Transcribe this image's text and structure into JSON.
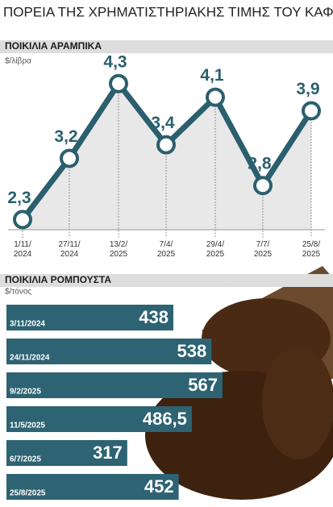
{
  "title": "Η ΠΟΡΕΙΑ ΤΗΣ ΧΡΗΜΑΤΙΣΤΗΡΙΑΚΗΣ ΤΙΜΗΣ ΤΟΥ ΚΑΦΕ",
  "chart_data": [
    {
      "type": "line",
      "title": "ΠΟΙΚΙΛΙΑ ΑΡΑΜΠΙΚΑ",
      "y_label": "$/λίβρα",
      "categories": [
        "1/11/2024",
        "27/11/2024",
        "13/2/2025",
        "7/4/2025",
        "29/4/2025",
        "7/7/2025",
        "25/8/2025"
      ],
      "series": [
        {
          "name": null,
          "color": "#2b5f6d",
          "values": [
            2.3,
            3.2,
            4.3,
            3.4,
            4.1,
            2.8,
            3.9
          ],
          "value_labels": [
            "2,3",
            "3,2",
            "4,3",
            "3,4",
            "4,1",
            "2,8",
            "3,9"
          ]
        }
      ],
      "ylim": [
        2.15,
        4.7
      ]
    },
    {
      "type": "hbar",
      "title": "ΠΟΙΚΙΛΙΑ ΡΟΜΠΟΥΣΤΑ",
      "x_label": "$/τόνος",
      "categories": [
        "3/11/2024",
        "24/11/2024",
        "9/2/2025",
        "11/5/2025",
        "6/7/2025",
        "25/8/2025"
      ],
      "values": [
        438,
        538,
        567,
        486.5,
        317,
        452
      ],
      "value_labels": [
        "438",
        "538",
        "567",
        "486,5",
        "317",
        "452"
      ],
      "color": "#2d6372",
      "xlim": [
        0,
        620
      ]
    }
  ]
}
